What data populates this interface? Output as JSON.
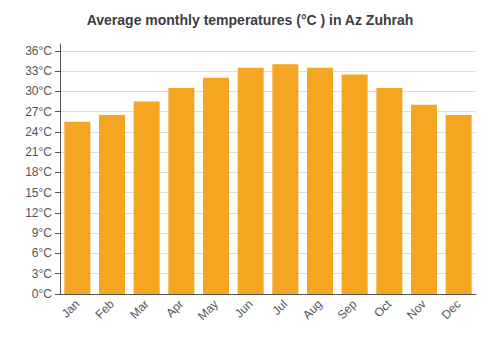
{
  "chart_data": {
    "type": "bar",
    "title": "Average monthly temperatures (°C ) in Az Zuhrah",
    "categories": [
      "Jan",
      "Feb",
      "Mar",
      "Apr",
      "May",
      "Jun",
      "Jul",
      "Aug",
      "Sep",
      "Oct",
      "Nov",
      "Dec"
    ],
    "values": [
      25.5,
      26.5,
      28.5,
      30.5,
      32.0,
      33.5,
      34.0,
      33.5,
      32.5,
      30.5,
      28.0,
      26.5
    ],
    "color": "#F5A623",
    "ylim": [
      0,
      37
    ],
    "yticks": [
      {
        "value": 0,
        "label": "0°C"
      },
      {
        "value": 3,
        "label": "3°C"
      },
      {
        "value": 6,
        "label": "6°C"
      },
      {
        "value": 9,
        "label": "9°C"
      },
      {
        "value": 12,
        "label": "12°C"
      },
      {
        "value": 15,
        "label": "15°C"
      },
      {
        "value": 18,
        "label": "18°C"
      },
      {
        "value": 21,
        "label": "21°C"
      },
      {
        "value": 24,
        "label": "24°C"
      },
      {
        "value": 27,
        "label": "27°C"
      },
      {
        "value": 30,
        "label": "30°C"
      },
      {
        "value": 33,
        "label": "33°C"
      },
      {
        "value": 36,
        "label": "36°C"
      }
    ],
    "grid": true
  }
}
